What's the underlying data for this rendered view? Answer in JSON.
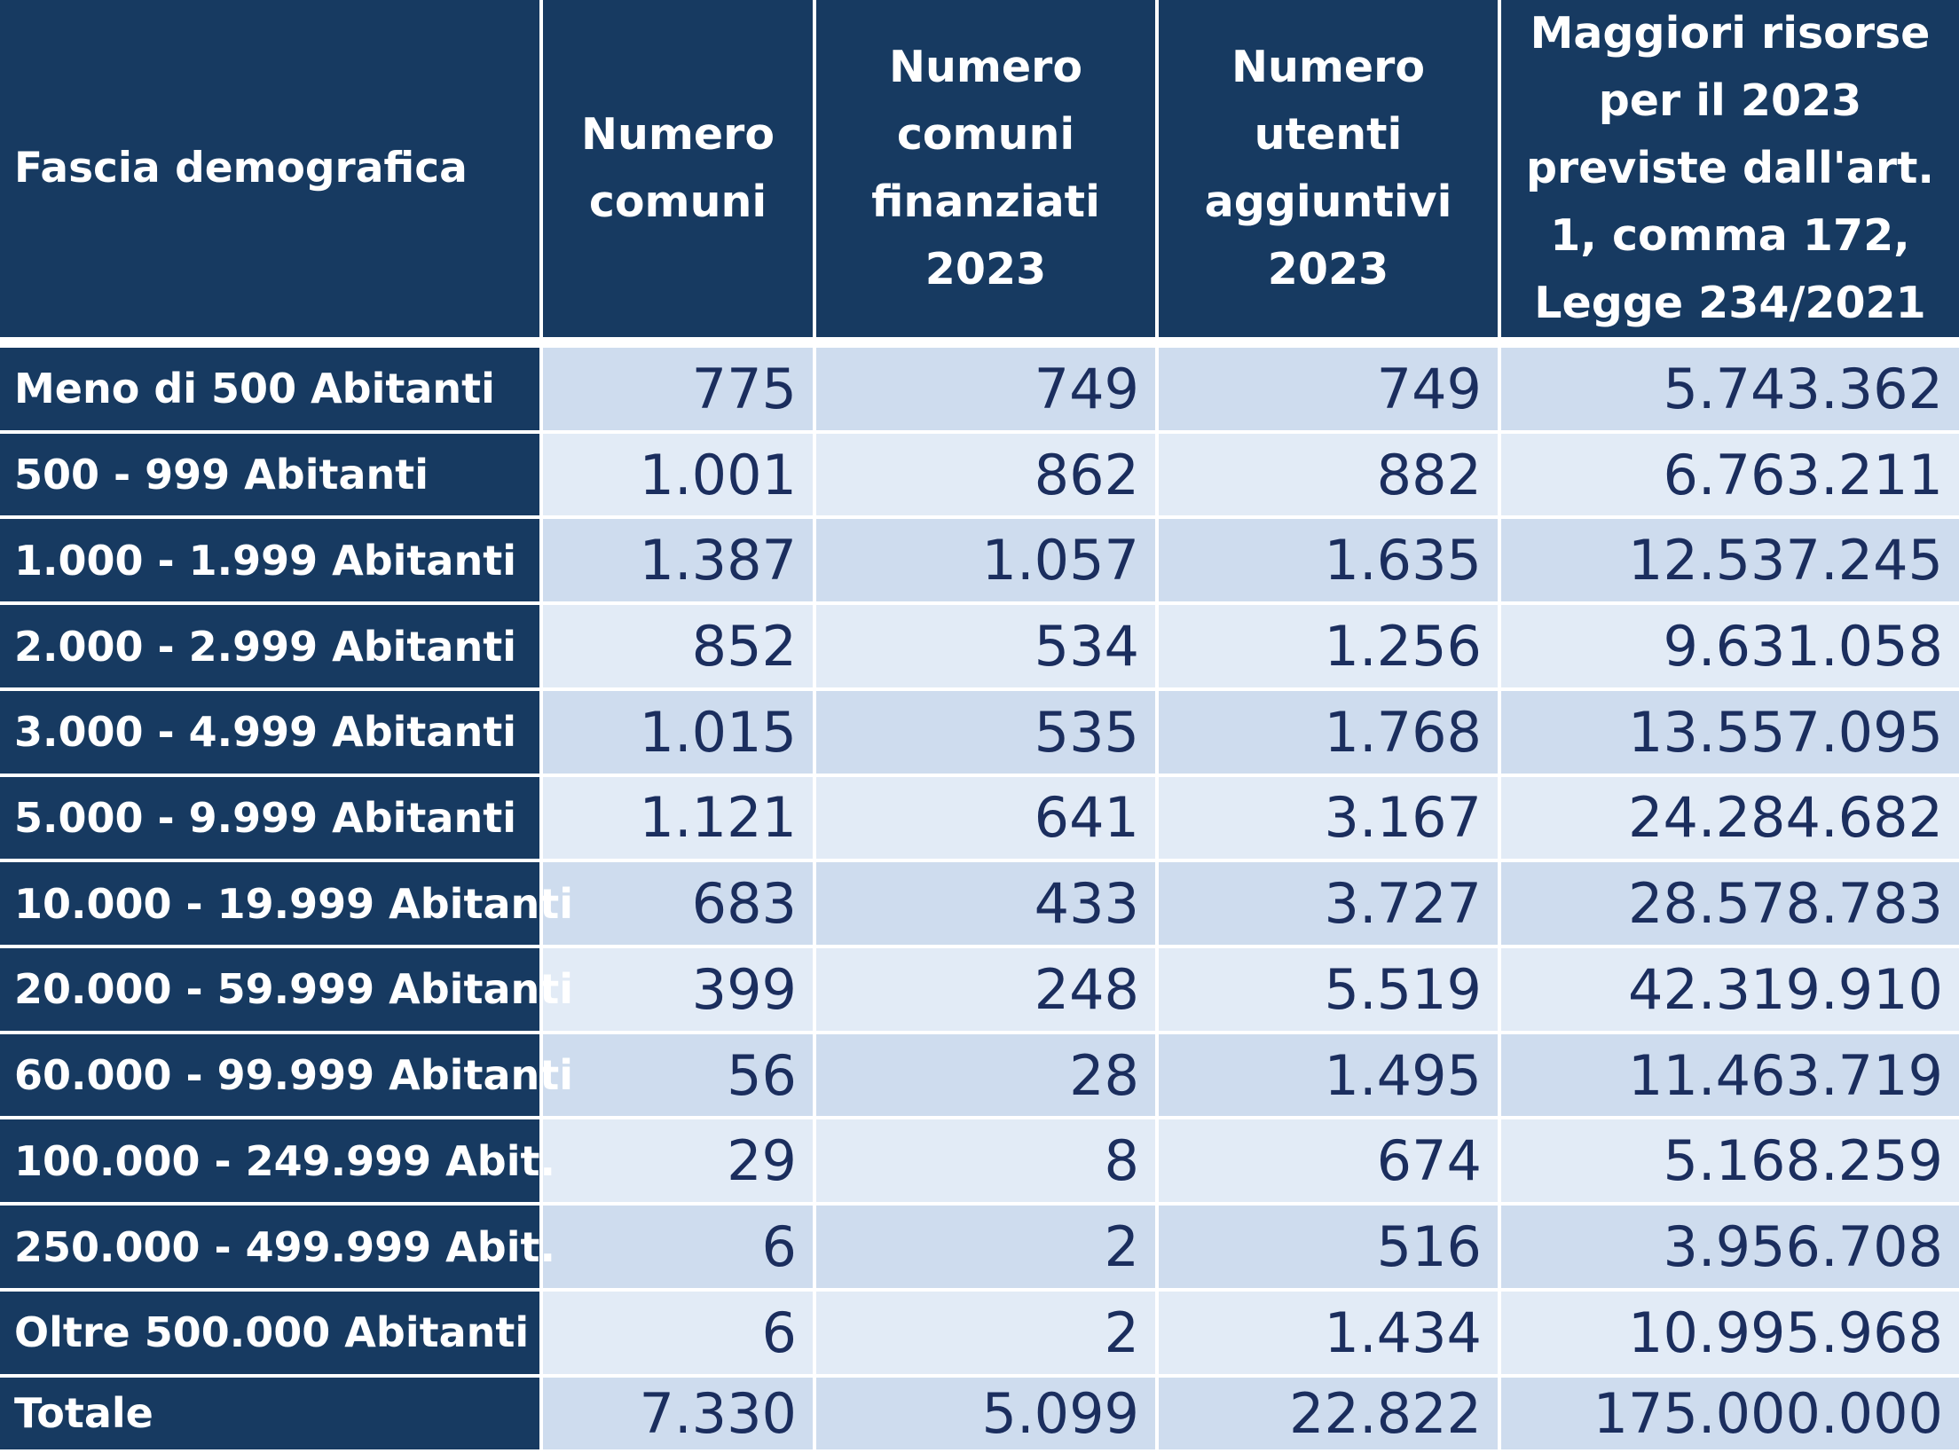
{
  "table": {
    "headers": [
      "Fascia demografica",
      "Numero comuni",
      "Numero comuni finanziati 2023",
      "Numero utenti aggiuntivi 2023",
      "Maggiori risorse per il 2023 previste dall'art. 1, comma 172, Legge 234/2021"
    ],
    "rows": [
      [
        "Meno di 500 Abitanti",
        "775",
        "749",
        "749",
        "5.743.362"
      ],
      [
        "500 - 999 Abitanti",
        "1.001",
        "862",
        "882",
        "6.763.211"
      ],
      [
        "1.000 - 1.999 Abitanti",
        "1.387",
        "1.057",
        "1.635",
        "12.537.245"
      ],
      [
        "2.000 - 2.999 Abitanti",
        "852",
        "534",
        "1.256",
        "9.631.058"
      ],
      [
        "3.000 - 4.999 Abitanti",
        "1.015",
        "535",
        "1.768",
        "13.557.095"
      ],
      [
        "5.000 - 9.999 Abitanti",
        "1.121",
        "641",
        "3.167",
        "24.284.682"
      ],
      [
        "10.000 - 19.999 Abitanti",
        "683",
        "433",
        "3.727",
        "28.578.783"
      ],
      [
        "20.000 - 59.999 Abitanti",
        "399",
        "248",
        "5.519",
        "42.319.910"
      ],
      [
        "60.000 - 99.999 Abitanti",
        "56",
        "28",
        "1.495",
        "11.463.719"
      ],
      [
        "100.000 - 249.999 Abit.",
        "29",
        "8",
        "674",
        "5.168.259"
      ],
      [
        "250.000 - 499.999 Abit.",
        "6",
        "2",
        "516",
        "3.956.708"
      ],
      [
        "Oltre 500.000 Abitanti",
        "6",
        "2",
        "1.434",
        "10.995.968"
      ],
      [
        "Totale",
        "7.330",
        "5.099",
        "22.822",
        "175.000.000"
      ]
    ]
  },
  "colors": {
    "header_bg": "#173a61",
    "header_text": "#ffffff",
    "row_band_dark": "#cedcee",
    "row_band_light": "#e2ebf6",
    "number_text": "#1b2e5e",
    "grid": "#ffffff"
  }
}
